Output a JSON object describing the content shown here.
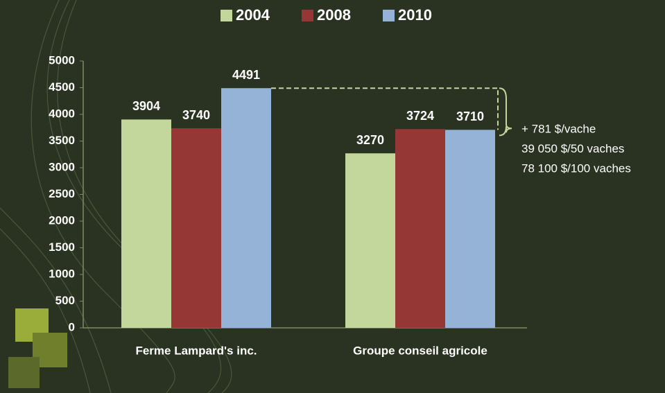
{
  "chart_data": {
    "type": "bar",
    "categories": [
      "Ferme Lampard's inc.",
      "Groupe conseil agricole"
    ],
    "series": [
      {
        "name": "2004",
        "color": "#c3d69b",
        "values": [
          3904,
          3270
        ]
      },
      {
        "name": "2008",
        "color": "#953735",
        "values": [
          3740,
          3724
        ]
      },
      {
        "name": "2010",
        "color": "#95b3d7",
        "values": [
          4491,
          3710
        ]
      }
    ],
    "ylim": [
      0,
      5000
    ],
    "yticks": [
      0,
      500,
      1000,
      1500,
      2000,
      2500,
      3000,
      3500,
      4000,
      4500,
      5000
    ],
    "annotations": [
      "+ 781 $/vache",
      "39 050 $/50 vaches",
      "78 100 $/100 vaches"
    ],
    "legend": "top"
  }
}
